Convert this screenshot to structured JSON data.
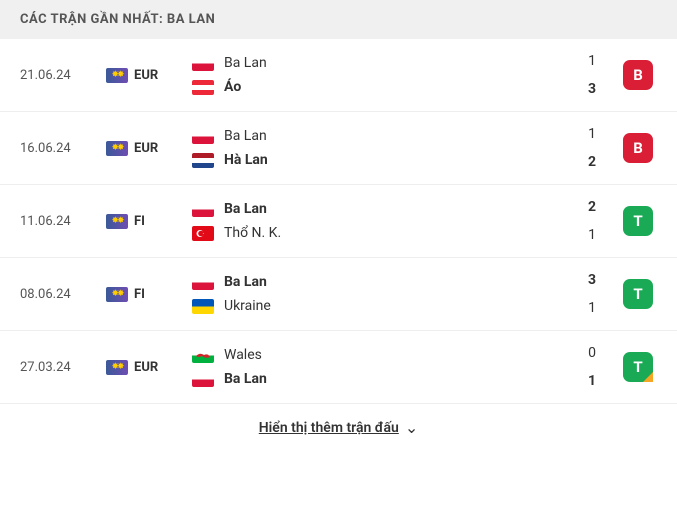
{
  "header": {
    "title": "CÁC TRẬN GẦN NHẤT: BA LAN"
  },
  "matches": [
    {
      "date": "21.06.24",
      "competition": "EUR",
      "team1": {
        "name": "Ba Lan",
        "flag": "poland",
        "score": "1",
        "winner": false
      },
      "team2": {
        "name": "Áo",
        "flag": "austria",
        "score": "3",
        "winner": true
      },
      "result": {
        "label": "B",
        "color": "#d91e36",
        "corner": false
      }
    },
    {
      "date": "16.06.24",
      "competition": "EUR",
      "team1": {
        "name": "Ba Lan",
        "flag": "poland",
        "score": "1",
        "winner": false
      },
      "team2": {
        "name": "Hà Lan",
        "flag": "netherlands",
        "score": "2",
        "winner": true
      },
      "result": {
        "label": "B",
        "color": "#d91e36",
        "corner": false
      }
    },
    {
      "date": "11.06.24",
      "competition": "FI",
      "team1": {
        "name": "Ba Lan",
        "flag": "poland",
        "score": "2",
        "winner": true
      },
      "team2": {
        "name": "Thổ N. K.",
        "flag": "turkey",
        "score": "1",
        "winner": false
      },
      "result": {
        "label": "T",
        "color": "#1aaa55",
        "corner": false
      }
    },
    {
      "date": "08.06.24",
      "competition": "FI",
      "team1": {
        "name": "Ba Lan",
        "flag": "poland",
        "score": "3",
        "winner": true
      },
      "team2": {
        "name": "Ukraine",
        "flag": "ukraine",
        "score": "1",
        "winner": false
      },
      "result": {
        "label": "T",
        "color": "#1aaa55",
        "corner": false
      }
    },
    {
      "date": "27.03.24",
      "competition": "EUR",
      "team1": {
        "name": "Wales",
        "flag": "wales",
        "score": "0",
        "winner": false
      },
      "team2": {
        "name": "Ba Lan",
        "flag": "poland",
        "score": "1",
        "winner": true
      },
      "result": {
        "label": "T",
        "color": "#1aaa55",
        "corner": true
      }
    }
  ],
  "footer": {
    "show_more": "Hiển thị thêm trận đấu"
  },
  "flag_svgs": {
    "poland": "<svg viewBox='0 0 22 15'><rect width='22' height='7.5' fill='#fff'/><rect y='7.5' width='22' height='7.5' fill='#dc143c'/></svg>",
    "austria": "<svg viewBox='0 0 22 15'><rect width='22' height='5' fill='#ed2939'/><rect y='5' width='22' height='5' fill='#fff'/><rect y='10' width='22' height='5' fill='#ed2939'/></svg>",
    "netherlands": "<svg viewBox='0 0 22 15'><rect width='22' height='5' fill='#ae1c28'/><rect y='5' width='22' height='5' fill='#fff'/><rect y='10' width='22' height='5' fill='#21468b'/></svg>",
    "turkey": "<svg viewBox='0 0 22 15'><rect width='22' height='15' fill='#e30a17'/><circle cx='8' cy='7.5' r='3.5' fill='#fff'/><circle cx='9' cy='7.5' r='2.8' fill='#e30a17'/><polygon points='12,7.5 10.8,7 11.3,8.2 11.3,6.8 10.8,8' fill='#fff'/></svg>",
    "ukraine": "<svg viewBox='0 0 22 15'><rect width='22' height='7.5' fill='#0057b7'/><rect y='7.5' width='22' height='7.5' fill='#ffd700'/></svg>",
    "wales": "<svg viewBox='0 0 22 15'><rect width='22' height='7.5' fill='#fff'/><rect y='7.5' width='22' height='7.5' fill='#00b140'/><path d='M4 8 Q8 4 12 7 Q16 5 18 9 Q14 11 10 8 Q6 10 4 8' fill='#d2252a'/></svg>"
  }
}
